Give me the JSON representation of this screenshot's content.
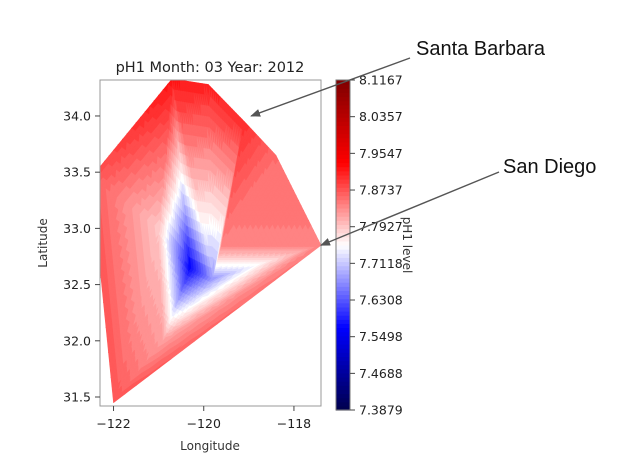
{
  "chart_data": {
    "type": "heatmap",
    "subtype": "filled-contour",
    "title": "pH1 Month: 03 Year: 2012",
    "xlabel": "Longitude",
    "ylabel": "Latitude",
    "xlim": [
      -122.3,
      -117.4
    ],
    "ylim": [
      31.42,
      34.32
    ],
    "xticks": [
      -122,
      -120,
      -118
    ],
    "xtick_labels": [
      "−122",
      "−120",
      "−118"
    ],
    "yticks": [
      31.5,
      32.0,
      32.5,
      33.0,
      33.5,
      34.0
    ],
    "ytick_labels": [
      "31.5",
      "32.0",
      "32.5",
      "33.0",
      "33.5",
      "34.0"
    ],
    "colormap": "seismic",
    "colorbar": {
      "label": "pH1 level",
      "min": 7.3879,
      "max": 8.1167,
      "ticks": [
        7.3879,
        7.4688,
        7.5498,
        7.6308,
        7.7118,
        7.7927,
        7.8737,
        7.9547,
        8.0357,
        8.1167
      ],
      "tick_labels": [
        "7.3879",
        "7.4688",
        "7.5498",
        "7.6308",
        "7.7118",
        "7.7927",
        "7.8737",
        "7.9547",
        "8.0357",
        "8.1167"
      ]
    },
    "stations": [
      {
        "lon": -120.7,
        "lat": 34.33,
        "value": 8.12
      },
      {
        "lon": -119.9,
        "lat": 34.28,
        "value": 8.1
      },
      {
        "lon": -119.1,
        "lat": 33.95,
        "value": 8.08
      },
      {
        "lon": -118.4,
        "lat": 33.65,
        "value": 7.98
      },
      {
        "lon": -117.4,
        "lat": 32.85,
        "value": 7.95
      },
      {
        "lon": -122.0,
        "lat": 31.45,
        "value": 8.02
      },
      {
        "lon": -122.5,
        "lat": 33.45,
        "value": 8.02
      },
      {
        "lon": -121.0,
        "lat": 33.0,
        "value": 7.84
      },
      {
        "lon": -120.3,
        "lat": 32.65,
        "value": 7.42
      },
      {
        "lon": -119.8,
        "lat": 32.55,
        "value": 7.62
      },
      {
        "lon": -119.6,
        "lat": 32.85,
        "value": 7.95
      },
      {
        "lon": -120.9,
        "lat": 32.0,
        "value": 7.9
      }
    ]
  },
  "annotations": [
    {
      "text": "Santa Barbara",
      "target": {
        "lon": -118.95,
        "lat": 34.0
      }
    },
    {
      "text": "San Diego",
      "target": {
        "lon": -117.4,
        "lat": 32.85
      }
    }
  ],
  "colors": {
    "low": "#00004c",
    "mid": "#ffffff",
    "high": "#7f0000",
    "frame": "#999999",
    "arrow": "#555555"
  }
}
